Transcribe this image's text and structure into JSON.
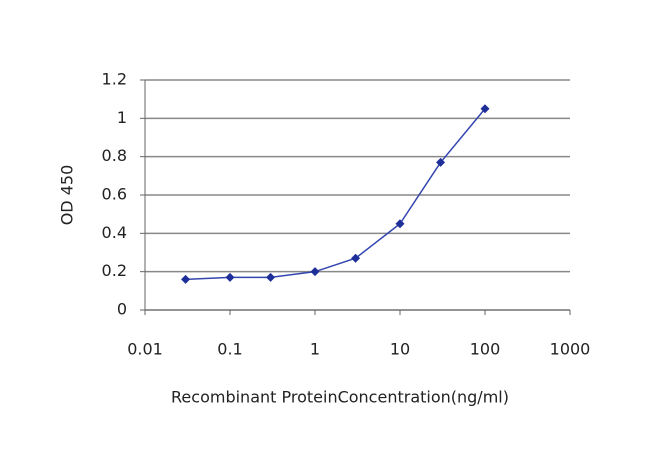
{
  "chart_data": {
    "type": "line",
    "xlabel": "Recombinant ProteinConcentration(ng/ml)",
    "ylabel": "OD 450",
    "x": [
      0.03,
      0.1,
      0.3,
      1,
      3,
      10,
      30,
      100
    ],
    "series": [
      {
        "color": "#3346b0",
        "values": [
          0.16,
          0.17,
          0.17,
          0.2,
          0.27,
          0.45,
          0.77,
          1.05
        ]
      }
    ],
    "xscale": "log",
    "xlim": [
      0.01,
      1000
    ],
    "xticks": [
      0.01,
      0.1,
      1,
      10,
      100,
      1000
    ],
    "ylim": [
      0,
      1.2
    ],
    "yticks": [
      0,
      0.2,
      0.4,
      0.6,
      0.8,
      1,
      1.2
    ],
    "grid": true
  }
}
